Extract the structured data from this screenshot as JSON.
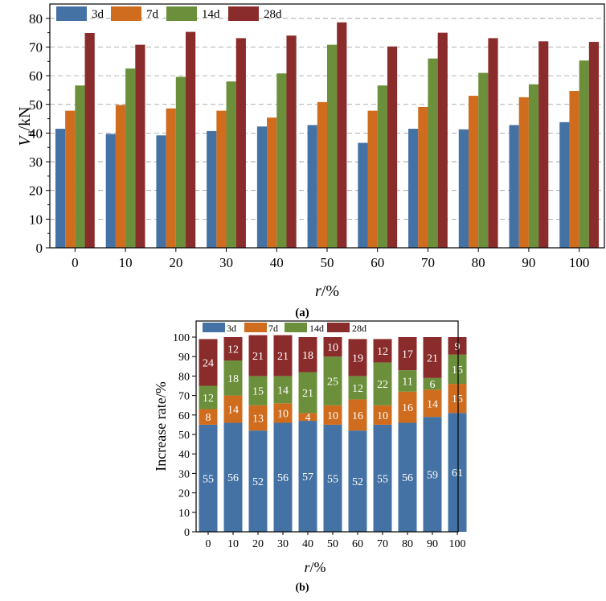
{
  "colors": {
    "3d": "#4472a4",
    "7d": "#cf6c1e",
    "14d": "#6b8f3a",
    "28d": "#8b2c2c",
    "grid": "#999999",
    "axis": "#000000"
  },
  "captions": {
    "a": "(a)",
    "b": "(b)"
  },
  "chart_data": [
    {
      "id": "a",
      "type": "bar",
      "categories": [
        "0",
        "10",
        "20",
        "30",
        "40",
        "50",
        "60",
        "70",
        "80",
        "90",
        "100"
      ],
      "series": [
        {
          "name": "3d",
          "values": [
            41.5,
            39.7,
            39.2,
            40.7,
            42.3,
            42.8,
            36.6,
            41.5,
            41.3,
            42.8,
            43.8
          ]
        },
        {
          "name": "7d",
          "values": [
            47.8,
            49.8,
            48.6,
            47.8,
            45.4,
            50.8,
            47.8,
            49.1,
            53.0,
            52.5,
            54.7
          ]
        },
        {
          "name": "14d",
          "values": [
            56.6,
            62.5,
            59.6,
            58.0,
            60.8,
            70.8,
            56.6,
            66.0,
            61.0,
            57.0,
            65.3
          ]
        },
        {
          "name": "28d",
          "values": [
            74.9,
            70.8,
            75.3,
            73.1,
            74.0,
            78.6,
            70.2,
            75.0,
            73.1,
            72.0,
            71.8
          ]
        }
      ],
      "xlabel": {
        "main": "r",
        "unit": "/%"
      },
      "ylabel": {
        "main": "V",
        "sub": "u",
        "unit": "/kN"
      },
      "ylim": [
        0,
        85
      ],
      "yticks": [
        0,
        10,
        20,
        30,
        40,
        50,
        60,
        70,
        80
      ],
      "grid": "horizontal dashed",
      "legend": "top-left"
    },
    {
      "id": "b",
      "type": "bar",
      "stacked": true,
      "categories": [
        "0",
        "10",
        "20",
        "30",
        "40",
        "50",
        "60",
        "70",
        "80",
        "90",
        "100"
      ],
      "series": [
        {
          "name": "3d",
          "values": [
            55,
            56,
            52,
            56,
            57,
            55,
            52,
            55,
            56,
            59,
            61
          ]
        },
        {
          "name": "7d",
          "values": [
            8,
            14,
            13,
            10,
            4,
            10,
            16,
            10,
            16,
            14,
            15
          ]
        },
        {
          "name": "14d",
          "values": [
            12,
            18,
            15,
            14,
            21,
            25,
            12,
            22,
            11,
            6,
            15
          ]
        },
        {
          "name": "28d",
          "values": [
            24,
            12,
            21,
            21,
            18,
            10,
            19,
            12,
            17,
            21,
            9
          ]
        }
      ],
      "xlabel": {
        "main": "r",
        "unit": "/%"
      },
      "ylabel": "Increase rate/%",
      "ylim": [
        0,
        100
      ],
      "yticks": [
        0,
        10,
        20,
        30,
        40,
        50,
        60,
        70,
        80,
        90,
        100
      ],
      "legend": "top"
    }
  ]
}
